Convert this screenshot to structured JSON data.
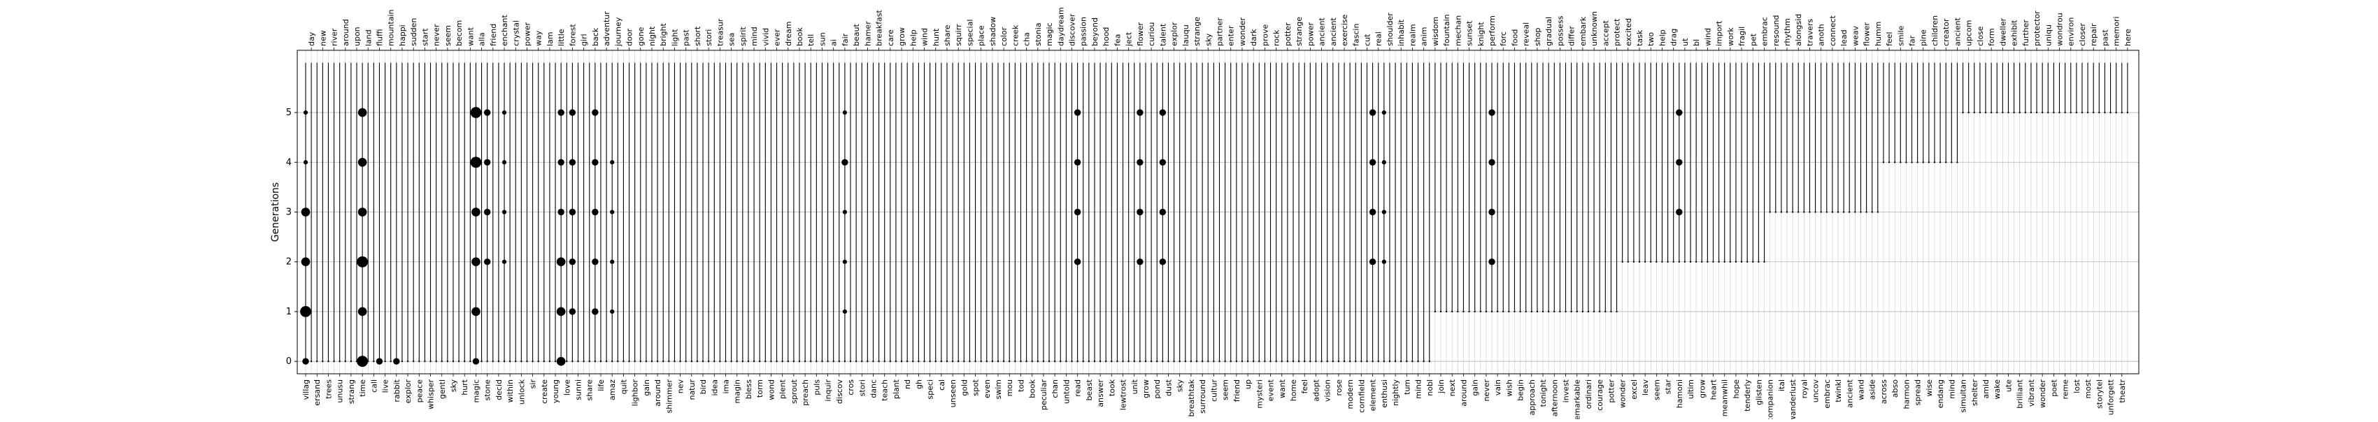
{
  "chart_data": {
    "type": "scatter",
    "ylabel": "Generations",
    "xlabel": "",
    "title": "",
    "y_ticks": [
      0,
      1,
      2,
      3,
      4,
      5
    ],
    "ylim": [
      -0.25,
      6.25
    ],
    "grid": true,
    "x_labels_top_note": "top axis shows alternating word labels",
    "words": [
      "villag",
      "day",
      "ersand",
      "new",
      "trees",
      "river",
      "unusu",
      "around",
      "strang",
      "upon",
      "time",
      "land",
      "call",
      "fluffi",
      "live",
      "mountain",
      "rabbit",
      "happi",
      "explor",
      "sudden",
      "peace",
      "start",
      "whisper",
      "never",
      "gentl",
      "seem",
      "sky",
      "becom",
      "hurt",
      "want",
      "magic",
      "alla",
      "stone",
      "friend",
      "decid",
      "enchant",
      "within",
      "crystal",
      "unlock",
      "power",
      "sir",
      "way",
      "create",
      "lam",
      "young",
      "little",
      "love",
      "forest",
      "sunni",
      "girl",
      "share",
      "back",
      "life",
      "adventur",
      "amaz",
      "journey",
      "quit",
      "door",
      "lighbor",
      "gone",
      "gain",
      "night",
      "around",
      "bright",
      "shimmer",
      "light",
      "nev",
      "past",
      "natur",
      "short",
      "bird",
      "stori",
      "idea",
      "treasur",
      "ima",
      "sea",
      "magin",
      "spirit",
      "bless",
      "mind",
      "torm",
      "vivid",
      "wond",
      "ever",
      "plent",
      "dream",
      "sprout",
      "book",
      "preach",
      "tell",
      "puls",
      "sun",
      "inquir",
      "ai",
      "discov",
      "fair",
      "cros",
      "beaut",
      "stori",
      "hamer",
      "danc",
      "breakfast",
      "teach",
      "care",
      "plant",
      "grow",
      "nd",
      "help",
      "gh",
      "wind",
      "speci",
      "hunt",
      "cal",
      "share",
      "unseen",
      "squirr",
      "gold",
      "special",
      "spot",
      "place",
      "even",
      "shadow",
      "swim",
      "color",
      "mou",
      "creek",
      "tod",
      "cha",
      "book",
      "stonia",
      "peculiar",
      "magic",
      "chan",
      "daydream",
      "untold",
      "discover",
      "read",
      "passion",
      "beast",
      "beyond",
      "answer",
      "hood",
      "took",
      "fea",
      "lewtrost",
      "ject",
      "unit",
      "flower",
      "grow",
      "curiou",
      "pond",
      "talent",
      "dust",
      "explor",
      "sky",
      "lauqu",
      "breathtak",
      "strange",
      "surround",
      "sky",
      "cultur",
      "partner",
      "seem",
      "enter",
      "friend",
      "wonder",
      "up",
      "dark",
      "mysteri",
      "prove",
      "event",
      "rock",
      "want",
      "potter",
      "home",
      "strange",
      "feel",
      "power",
      "adopt",
      "ancient",
      "vision",
      "ancient",
      "rose",
      "exercise",
      "modern",
      "fascin",
      "cornfield",
      "cut",
      "element",
      "real",
      "enthusi",
      "shoulder",
      "nightly",
      "inhabit",
      "tum",
      "realm",
      "mind",
      "anim",
      "nobl",
      "wisdom",
      "join",
      "fountain",
      "next",
      "mechan",
      "around",
      "sunset",
      "gain",
      "knight",
      "never",
      "perform",
      "vain",
      "forc",
      "wish",
      "food",
      "begin",
      "reveal",
      "approach",
      "shop",
      "tonight",
      "gradual",
      "afternoon",
      "possess",
      "invest",
      "differ",
      "remarkable",
      "embark",
      "ordinari",
      "unknown",
      "courage",
      "accept",
      "potter",
      "protect",
      "wonder",
      "excited",
      "excel",
      "task",
      "leav",
      "two",
      "seem",
      "help",
      "star",
      "drag",
      "hamoni",
      "ut",
      "ultim",
      "bl",
      "grow",
      "wind",
      "heart",
      "import",
      "meanwhil",
      "work",
      "hope",
      "fragil",
      "tenderly",
      "pet",
      "glisten",
      "embrac",
      "companion",
      "resound",
      "ital",
      "rhythm",
      "wanderlust",
      "alongsid",
      "royal",
      "travers",
      "uncov",
      "anoth",
      "embrac",
      "connect",
      "twinkl",
      "lead",
      "ancient",
      "weav",
      "wand",
      "flower",
      "aside",
      "humm",
      "across",
      "feel",
      "abso",
      "smile",
      "harmon",
      "far",
      "spread",
      "pine",
      "wise",
      "children",
      "endang",
      "creator",
      "mind",
      "ancient",
      "simultan",
      "upcom",
      "shelter",
      "close",
      "amid",
      "form",
      "wake",
      "dweller",
      "ute",
      "exhibit",
      "brilliant",
      "further",
      "vibrant",
      "protector",
      "wonder",
      "uniqu",
      "poet",
      "wondrou",
      "reme",
      "environ",
      "lost",
      "closer",
      "most",
      "repair",
      "storytel",
      "past",
      "unforgett",
      "memori",
      "theatr",
      "here"
    ],
    "row_ranges": [
      {
        "from_index": 0,
        "min_gen": 0,
        "max_gen": 6
      },
      {
        "from_index": 120,
        "min_gen": 0,
        "max_gen": 6
      },
      {
        "from_index": 148,
        "min_gen": 0,
        "max_gen": 6
      },
      {
        "from_index": 199,
        "min_gen": 1,
        "max_gen": 6
      },
      {
        "from_index": 232,
        "min_gen": 2,
        "max_gen": 6
      },
      {
        "from_index": 258,
        "min_gen": 3,
        "max_gen": 6
      },
      {
        "from_index": 278,
        "min_gen": 4,
        "max_gen": 6
      },
      {
        "from_index": 292,
        "min_gen": 5,
        "max_gen": 6
      }
    ],
    "markers": [
      {
        "word_index": 0,
        "gens": [
          0,
          1,
          2,
          3,
          4,
          5
        ],
        "sizes": [
          2,
          4,
          3,
          3,
          1,
          1
        ]
      },
      {
        "word_index": 10,
        "gens": [
          0,
          1,
          2,
          3,
          4,
          5
        ],
        "sizes": [
          4,
          3,
          4,
          3,
          3,
          3
        ]
      },
      {
        "word_index": 13,
        "gens": [
          0
        ],
        "sizes": [
          2
        ]
      },
      {
        "word_index": 16,
        "gens": [
          0
        ],
        "sizes": [
          2
        ]
      },
      {
        "word_index": 30,
        "gens": [
          0,
          1,
          2,
          3,
          4,
          5
        ],
        "sizes": [
          2,
          3,
          3,
          3,
          4,
          4
        ]
      },
      {
        "word_index": 32,
        "gens": [
          2,
          3,
          4,
          5
        ],
        "sizes": [
          2,
          2,
          2,
          2
        ]
      },
      {
        "word_index": 35,
        "gens": [
          2,
          3,
          4,
          5
        ],
        "sizes": [
          1,
          1,
          1,
          1
        ]
      },
      {
        "word_index": 45,
        "gens": [
          0,
          1,
          2,
          3,
          4,
          5
        ],
        "sizes": [
          3,
          3,
          3,
          2,
          2,
          2
        ]
      },
      {
        "word_index": 47,
        "gens": [
          1,
          2,
          3,
          4,
          5
        ],
        "sizes": [
          2,
          2,
          2,
          2,
          2
        ]
      },
      {
        "word_index": 51,
        "gens": [
          1,
          2,
          3,
          4,
          5
        ],
        "sizes": [
          2,
          2,
          2,
          2,
          2
        ]
      },
      {
        "word_index": 54,
        "gens": [
          1,
          2,
          3,
          4
        ],
        "sizes": [
          1,
          1,
          1,
          1
        ]
      },
      {
        "word_index": 95,
        "gens": [
          1,
          2,
          3,
          4,
          5
        ],
        "sizes": [
          1,
          1,
          1,
          2,
          1
        ]
      },
      {
        "word_index": 136,
        "gens": [
          2,
          3,
          4,
          5
        ],
        "sizes": [
          2,
          2,
          2,
          2
        ]
      },
      {
        "word_index": 147,
        "gens": [
          2,
          3,
          4,
          5
        ],
        "sizes": [
          2,
          2,
          2,
          2
        ]
      },
      {
        "word_index": 151,
        "gens": [
          2,
          3,
          4,
          5
        ],
        "sizes": [
          2,
          2,
          2,
          2
        ]
      },
      {
        "word_index": 188,
        "gens": [
          2,
          3,
          4,
          5
        ],
        "sizes": [
          2,
          2,
          2,
          2
        ]
      },
      {
        "word_index": 190,
        "gens": [
          2,
          3,
          4,
          5
        ],
        "sizes": [
          1,
          1,
          1,
          1
        ]
      },
      {
        "word_index": 209,
        "gens": [
          2,
          3,
          4,
          5
        ],
        "sizes": [
          2,
          2,
          2,
          2
        ]
      },
      {
        "word_index": 242,
        "gens": [
          3,
          4,
          5
        ],
        "sizes": [
          2,
          2,
          2
        ]
      }
    ]
  }
}
